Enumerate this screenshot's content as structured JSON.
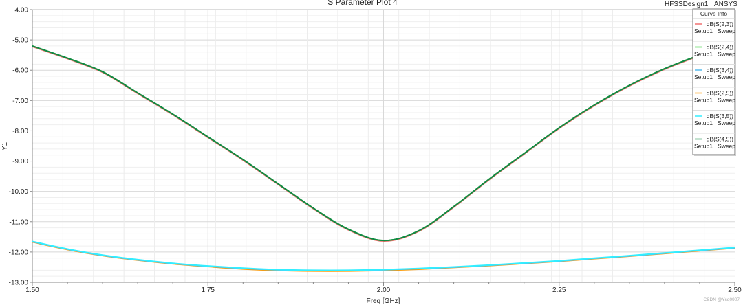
{
  "chart_data": {
    "type": "line",
    "title": "S Parameter Plot 4",
    "corner_labels": [
      "HFSSDesign1",
      "ANSYS"
    ],
    "xlabel": "Freq [GHz]",
    "ylabel": "Y1",
    "xlim": [
      1.5,
      2.5
    ],
    "ylim": [
      -13.0,
      -4.0
    ],
    "x_ticks": [
      "1.50",
      "1.75",
      "2.00",
      "2.25",
      "2.50"
    ],
    "y_ticks": [
      "-4.00",
      "-5.00",
      "-6.00",
      "-7.00",
      "-8.00",
      "-9.00",
      "-10.00",
      "-11.00",
      "-12.00",
      "-13.00"
    ],
    "grid": true,
    "legend": {
      "title": "Curve Info",
      "placement": "top-right"
    },
    "x": [
      1.5,
      1.55,
      1.6,
      1.65,
      1.7,
      1.75,
      1.8,
      1.85,
      1.9,
      1.95,
      2.0,
      2.05,
      2.1,
      2.15,
      2.2,
      2.25,
      2.3,
      2.35,
      2.4,
      2.45,
      2.5
    ],
    "series": [
      {
        "name": "dB(S(2,3))",
        "setup": "Setup1 : Sweep",
        "color": "#f07070",
        "values": [
          -5.22,
          -5.62,
          -6.07,
          -6.77,
          -7.47,
          -8.22,
          -8.97,
          -9.77,
          -10.57,
          -11.27,
          -11.64,
          -11.32,
          -10.52,
          -9.62,
          -8.77,
          -7.92,
          -7.17,
          -6.52,
          -5.97,
          -5.52,
          -5.12
        ]
      },
      {
        "name": "dB(S(2,4))",
        "setup": "Setup1 : Sweep",
        "color": "#22cc22",
        "values": [
          -5.2,
          -5.6,
          -6.05,
          -6.75,
          -7.45,
          -8.2,
          -8.95,
          -9.75,
          -10.55,
          -11.25,
          -11.62,
          -11.3,
          -10.5,
          -9.6,
          -8.75,
          -7.9,
          -7.15,
          -6.5,
          -5.95,
          -5.5,
          -5.1
        ]
      },
      {
        "name": "dB(S(3,4))",
        "setup": "Setup1 : Sweep",
        "color": "#55bbee",
        "values": [
          -11.66,
          -11.91,
          -12.11,
          -12.26,
          -12.38,
          -12.47,
          -12.54,
          -12.59,
          -12.61,
          -12.61,
          -12.59,
          -12.55,
          -12.5,
          -12.44,
          -12.37,
          -12.3,
          -12.21,
          -12.13,
          -12.04,
          -11.95,
          -11.86
        ]
      },
      {
        "name": "dB(S(2,5))",
        "setup": "Setup1 : Sweep",
        "color": "#ff9900",
        "values": [
          -11.67,
          -11.92,
          -12.12,
          -12.27,
          -12.39,
          -12.48,
          -12.56,
          -12.61,
          -12.63,
          -12.63,
          -12.61,
          -12.57,
          -12.51,
          -12.45,
          -12.38,
          -12.31,
          -12.22,
          -12.14,
          -12.05,
          -11.96,
          -11.87
        ]
      },
      {
        "name": "dB(S(3,5))",
        "setup": "Setup1 : Sweep",
        "color": "#33eeff",
        "values": [
          -11.65,
          -11.9,
          -12.1,
          -12.25,
          -12.37,
          -12.46,
          -12.53,
          -12.58,
          -12.6,
          -12.6,
          -12.58,
          -12.54,
          -12.49,
          -12.43,
          -12.36,
          -12.29,
          -12.2,
          -12.12,
          -12.03,
          -11.94,
          -11.85
        ]
      },
      {
        "name": "dB(S(4,5))",
        "setup": "Setup1 : Sweep",
        "color": "#118844",
        "values": [
          -5.2,
          -5.6,
          -6.05,
          -6.75,
          -7.45,
          -8.2,
          -8.95,
          -9.75,
          -10.55,
          -11.25,
          -11.62,
          -11.3,
          -10.5,
          -9.6,
          -8.75,
          -7.9,
          -7.15,
          -6.5,
          -5.95,
          -5.5,
          -5.1
        ]
      }
    ]
  },
  "watermark": "CSDN @Ysq0907"
}
